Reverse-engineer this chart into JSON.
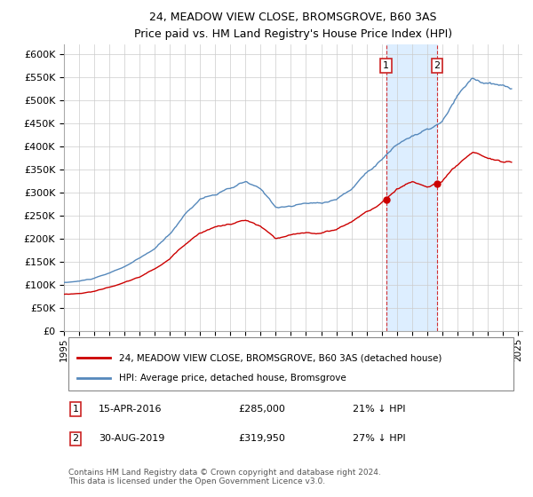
{
  "title": "24, MEADOW VIEW CLOSE, BROMSGROVE, B60 3AS",
  "subtitle": "Price paid vs. HM Land Registry's House Price Index (HPI)",
  "legend_line1": "24, MEADOW VIEW CLOSE, BROMSGROVE, B60 3AS (detached house)",
  "legend_line2": "HPI: Average price, detached house, Bromsgrove",
  "annotation1_date": "15-APR-2016",
  "annotation1_price": "£285,000",
  "annotation1_hpi": "21% ↓ HPI",
  "annotation2_date": "30-AUG-2019",
  "annotation2_price": "£319,950",
  "annotation2_hpi": "27% ↓ HPI",
  "footer": "Contains HM Land Registry data © Crown copyright and database right 2024.\nThis data is licensed under the Open Government Licence v3.0.",
  "red_color": "#cc0000",
  "blue_color": "#5588bb",
  "shade_color": "#ddeeff",
  "ylim": [
    0,
    620000
  ],
  "yticks": [
    0,
    50000,
    100000,
    150000,
    200000,
    250000,
    300000,
    350000,
    400000,
    450000,
    500000,
    550000,
    600000
  ],
  "ytick_labels": [
    "£0",
    "£50K",
    "£100K",
    "£150K",
    "£200K",
    "£250K",
    "£300K",
    "£350K",
    "£400K",
    "£450K",
    "£500K",
    "£550K",
    "£600K"
  ],
  "sale1_x": 2016.29,
  "sale1_y": 285000,
  "sale2_x": 2019.66,
  "sale2_y": 319950,
  "xmin": 1995.0,
  "xmax": 2025.3
}
